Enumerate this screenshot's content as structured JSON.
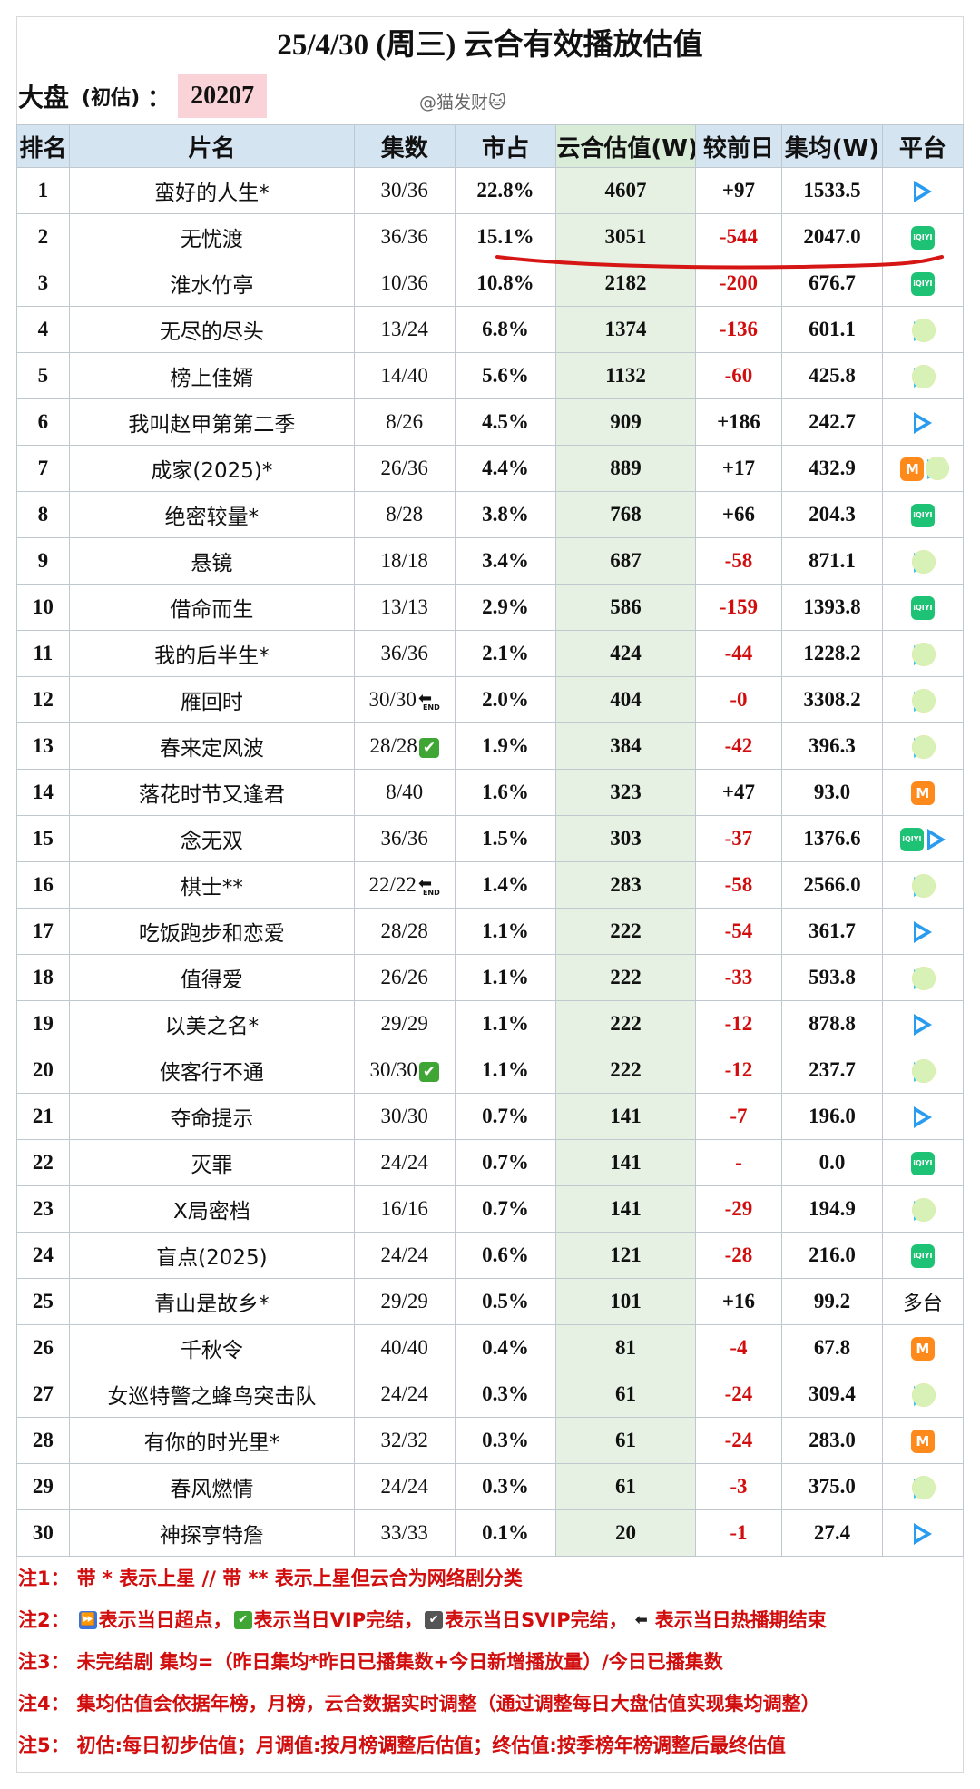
{
  "title": "25/4/30 (周三) 云合有效播放估值",
  "summary": {
    "label": "大盘",
    "sub_label": "(初估)",
    "colon": "：",
    "value": "20207"
  },
  "watermark": "@猫发财🐱",
  "table": {
    "headers": [
      "排名",
      "片名",
      "集数",
      "市占",
      "云合估值(W)",
      "较前日",
      "集均(W)",
      "平台"
    ],
    "rows": [
      {
        "rank": "1",
        "name": "蛮好的人生*",
        "eps": "30/36",
        "flag": "",
        "share": "22.8%",
        "est": "4607",
        "chg": "+97",
        "avg": "1533.5",
        "platforms": [
          "tencent"
        ],
        "platform_text": ""
      },
      {
        "rank": "2",
        "name": "无忧渡",
        "eps": "36/36",
        "flag": "",
        "share": "15.1%",
        "est": "3051",
        "chg": "-544",
        "avg": "2047.0",
        "platforms": [
          "iqiyi"
        ],
        "platform_text": ""
      },
      {
        "rank": "3",
        "name": "淮水竹亭",
        "eps": "10/36",
        "flag": "",
        "share": "10.8%",
        "est": "2182",
        "chg": "-200",
        "avg": "676.7",
        "platforms": [
          "iqiyi"
        ],
        "platform_text": ""
      },
      {
        "rank": "4",
        "name": "无尽的尽头",
        "eps": "13/24",
        "flag": "",
        "share": "6.8%",
        "est": "1374",
        "chg": "-136",
        "avg": "601.1",
        "platforms": [
          "youku"
        ],
        "platform_text": ""
      },
      {
        "rank": "5",
        "name": "榜上佳婿",
        "eps": "14/40",
        "flag": "",
        "share": "5.6%",
        "est": "1132",
        "chg": "-60",
        "avg": "425.8",
        "platforms": [
          "youku"
        ],
        "platform_text": ""
      },
      {
        "rank": "6",
        "name": "我叫赵甲第第二季",
        "eps": "8/26",
        "flag": "",
        "share": "4.5%",
        "est": "909",
        "chg": "+186",
        "avg": "242.7",
        "platforms": [
          "tencent"
        ],
        "platform_text": ""
      },
      {
        "rank": "7",
        "name": "成家(2025)*",
        "eps": "26/36",
        "flag": "",
        "share": "4.4%",
        "est": "889",
        "chg": "+17",
        "avg": "432.9",
        "platforms": [
          "mango",
          "youku"
        ],
        "platform_text": ""
      },
      {
        "rank": "8",
        "name": "绝密较量*",
        "eps": "8/28",
        "flag": "",
        "share": "3.8%",
        "est": "768",
        "chg": "+66",
        "avg": "204.3",
        "platforms": [
          "iqiyi"
        ],
        "platform_text": ""
      },
      {
        "rank": "9",
        "name": "悬镜",
        "eps": "18/18",
        "flag": "",
        "share": "3.4%",
        "est": "687",
        "chg": "-58",
        "avg": "871.1",
        "platforms": [
          "youku"
        ],
        "platform_text": ""
      },
      {
        "rank": "10",
        "name": "借命而生",
        "eps": "13/13",
        "flag": "",
        "share": "2.9%",
        "est": "586",
        "chg": "-159",
        "avg": "1393.8",
        "platforms": [
          "iqiyi"
        ],
        "platform_text": ""
      },
      {
        "rank": "11",
        "name": "我的后半生*",
        "eps": "36/36",
        "flag": "",
        "share": "2.1%",
        "est": "424",
        "chg": "-44",
        "avg": "1228.2",
        "platforms": [
          "youku"
        ],
        "platform_text": ""
      },
      {
        "rank": "12",
        "name": "雁回时",
        "eps": "30/30",
        "flag": "end",
        "share": "2.0%",
        "est": "404",
        "chg": "-0",
        "avg": "3308.2",
        "platforms": [
          "youku"
        ],
        "platform_text": ""
      },
      {
        "rank": "13",
        "name": "春来定风波",
        "eps": "28/28",
        "flag": "vip",
        "share": "1.9%",
        "est": "384",
        "chg": "-42",
        "avg": "396.3",
        "platforms": [
          "youku"
        ],
        "platform_text": ""
      },
      {
        "rank": "14",
        "name": "落花时节又逢君",
        "eps": "8/40",
        "flag": "",
        "share": "1.6%",
        "est": "323",
        "chg": "+47",
        "avg": "93.0",
        "platforms": [
          "mango"
        ],
        "platform_text": ""
      },
      {
        "rank": "15",
        "name": "念无双",
        "eps": "36/36",
        "flag": "",
        "share": "1.5%",
        "est": "303",
        "chg": "-37",
        "avg": "1376.6",
        "platforms": [
          "iqiyi",
          "tencent"
        ],
        "platform_text": ""
      },
      {
        "rank": "16",
        "name": "棋士**",
        "eps": "22/22",
        "flag": "end",
        "share": "1.4%",
        "est": "283",
        "chg": "-58",
        "avg": "2566.0",
        "platforms": [
          "youku"
        ],
        "platform_text": ""
      },
      {
        "rank": "17",
        "name": "吃饭跑步和恋爱",
        "eps": "28/28",
        "flag": "",
        "share": "1.1%",
        "est": "222",
        "chg": "-54",
        "avg": "361.7",
        "platforms": [
          "tencent"
        ],
        "platform_text": ""
      },
      {
        "rank": "18",
        "name": "值得爱",
        "eps": "26/26",
        "flag": "",
        "share": "1.1%",
        "est": "222",
        "chg": "-33",
        "avg": "593.8",
        "platforms": [
          "youku"
        ],
        "platform_text": ""
      },
      {
        "rank": "19",
        "name": "以美之名*",
        "eps": "29/29",
        "flag": "",
        "share": "1.1%",
        "est": "222",
        "chg": "-12",
        "avg": "878.8",
        "platforms": [
          "tencent"
        ],
        "platform_text": ""
      },
      {
        "rank": "20",
        "name": "侠客行不通",
        "eps": "30/30",
        "flag": "vip",
        "share": "1.1%",
        "est": "222",
        "chg": "-12",
        "avg": "237.7",
        "platforms": [
          "youku"
        ],
        "platform_text": ""
      },
      {
        "rank": "21",
        "name": "夺命提示",
        "eps": "30/30",
        "flag": "",
        "share": "0.7%",
        "est": "141",
        "chg": "-7",
        "avg": "196.0",
        "platforms": [
          "tencent"
        ],
        "platform_text": ""
      },
      {
        "rank": "22",
        "name": "灭罪",
        "eps": "24/24",
        "flag": "",
        "share": "0.7%",
        "est": "141",
        "chg": "-",
        "avg": "0.0",
        "platforms": [
          "iqiyi"
        ],
        "platform_text": ""
      },
      {
        "rank": "23",
        "name": "X局密档",
        "eps": "16/16",
        "flag": "",
        "share": "0.7%",
        "est": "141",
        "chg": "-29",
        "avg": "194.9",
        "platforms": [
          "youku"
        ],
        "platform_text": ""
      },
      {
        "rank": "24",
        "name": "盲点(2025)",
        "eps": "24/24",
        "flag": "",
        "share": "0.6%",
        "est": "121",
        "chg": "-28",
        "avg": "216.0",
        "platforms": [
          "iqiyi"
        ],
        "platform_text": ""
      },
      {
        "rank": "25",
        "name": "青山是故乡*",
        "eps": "29/29",
        "flag": "",
        "share": "0.5%",
        "est": "101",
        "chg": "+16",
        "avg": "99.2",
        "platforms": [],
        "platform_text": "多台"
      },
      {
        "rank": "26",
        "name": "千秋令",
        "eps": "40/40",
        "flag": "",
        "share": "0.4%",
        "est": "81",
        "chg": "-4",
        "avg": "67.8",
        "platforms": [
          "mango"
        ],
        "platform_text": ""
      },
      {
        "rank": "27",
        "name": "女巡特警之蜂鸟突击队",
        "eps": "24/24",
        "flag": "",
        "share": "0.3%",
        "est": "61",
        "chg": "-24",
        "avg": "309.4",
        "platforms": [
          "youku"
        ],
        "platform_text": ""
      },
      {
        "rank": "28",
        "name": "有你的时光里*",
        "eps": "32/32",
        "flag": "",
        "share": "0.3%",
        "est": "61",
        "chg": "-24",
        "avg": "283.0",
        "platforms": [
          "mango"
        ],
        "platform_text": ""
      },
      {
        "rank": "29",
        "name": "春风燃情",
        "eps": "24/24",
        "flag": "",
        "share": "0.3%",
        "est": "61",
        "chg": "-3",
        "avg": "375.0",
        "platforms": [
          "youku"
        ],
        "platform_text": ""
      },
      {
        "rank": "30",
        "name": "神探亨特詹",
        "eps": "33/33",
        "flag": "",
        "share": "0.1%",
        "est": "20",
        "chg": "-1",
        "avg": "27.4",
        "platforms": [
          "tencent"
        ],
        "platform_text": ""
      }
    ]
  },
  "notes": [
    {
      "label": "注1：",
      "parts": [
        {
          "t": "text",
          "v": "带 * 表示上星 // 带 ** 表示上星但云合为网络剧分类"
        }
      ]
    },
    {
      "label": "注2：",
      "parts": [
        {
          "t": "icon",
          "k": "super",
          "v": "⏩"
        },
        {
          "t": "text",
          "v": "表示当日超点，"
        },
        {
          "t": "icon",
          "k": "vipok",
          "v": "✔"
        },
        {
          "t": "text",
          "v": "表示当日VIP完结，"
        },
        {
          "t": "icon",
          "k": "svip",
          "v": "✔"
        },
        {
          "t": "text",
          "v": "表示当日SVIP完结，"
        },
        {
          "t": "icon",
          "k": "endi",
          "v": "⬅"
        },
        {
          "t": "text",
          "v": "表示当日热播期结束"
        }
      ]
    },
    {
      "label": "注3：",
      "parts": [
        {
          "t": "text",
          "v": "未完结剧 集均=（昨日集均*昨日已播集数+今日新增播放量）/今日已播集数"
        }
      ]
    },
    {
      "label": "注4：",
      "parts": [
        {
          "t": "text",
          "v": "集均估值会依据年榜，月榜，云合数据实时调整（通过调整每日大盘估值实现集均调整）"
        }
      ]
    },
    {
      "label": "注5：",
      "parts": [
        {
          "t": "text",
          "v": "初估:每日初步估值；月调值:按月榜调整后估值；终估值:按季榜年榜调整后最终估值"
        }
      ]
    }
  ],
  "colors": {
    "header_bg": "#d5e4f1",
    "estimate_bg": "#e6f1e4",
    "negative": "#d10d0d",
    "note_red": "#d10d0d",
    "highlight": "#f9d3d8"
  }
}
